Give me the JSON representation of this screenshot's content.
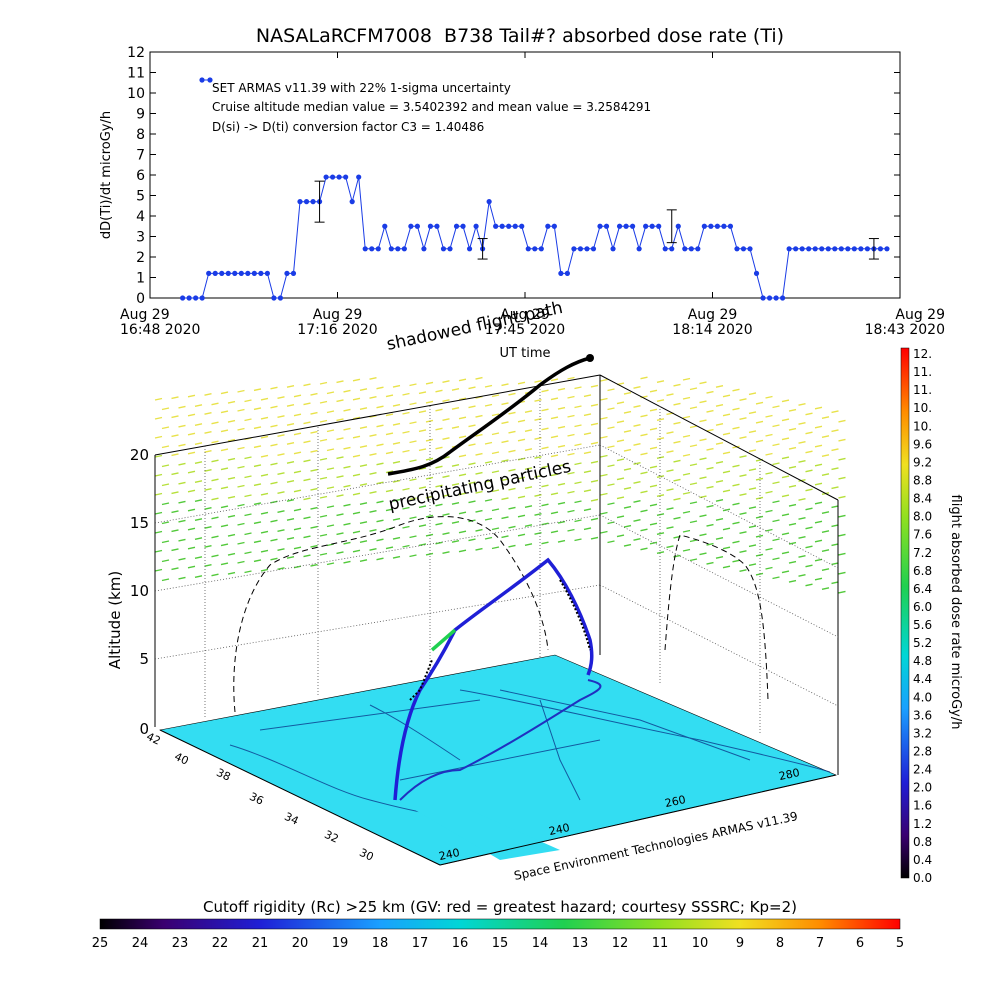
{
  "chart_data": [
    {
      "type": "line",
      "title": "NASALaRCFM7008  B738 Tail#? absorbed dose rate (Ti)",
      "ylabel": "dD(Ti)/dt microGy/h",
      "xlabel": "UT time",
      "ylim": [
        0,
        12
      ],
      "yticks": [
        "0",
        "1",
        "2",
        "3",
        "4",
        "5",
        "6",
        "7",
        "8",
        "9",
        "10",
        "11",
        "12"
      ],
      "xtick_labels": [
        {
          "top": "Aug 29",
          "bottom": "16:48 2020"
        },
        {
          "top": "Aug 29",
          "bottom": "17:16 2020"
        },
        {
          "top": "Aug 29",
          "bottom": "17:45 2020"
        },
        {
          "top": "Aug 29",
          "bottom": "18:14 2020"
        },
        {
          "top": "Aug 29",
          "bottom": "18:43 2020"
        }
      ],
      "xlim_minutes": [
        0,
        115
      ],
      "annotations": [
        "SET ARMAS v11.39 with 22% 1-sigma uncertainty",
        "Cruise altitude median value = 3.5402392 and mean value = 3.2584291",
        "D(si) -> D(ti) conversion factor C3 = 1.40486"
      ],
      "series": [
        {
          "x": [
            5,
            6,
            7,
            8,
            9,
            10,
            11,
            12,
            13,
            14,
            15,
            16,
            17,
            18,
            19,
            20,
            21,
            22,
            23,
            24,
            25,
            26,
            27,
            28,
            29,
            30,
            31,
            32,
            33,
            34,
            35,
            36,
            37,
            38,
            39,
            40,
            41,
            42,
            43,
            44,
            45,
            46,
            47,
            48,
            49,
            50,
            51,
            52,
            53,
            54,
            55,
            56,
            57,
            58,
            59,
            60,
            61,
            62,
            63,
            64,
            65,
            66,
            67,
            68,
            69,
            70,
            71,
            72,
            73,
            74,
            75,
            76,
            77,
            78,
            79,
            80,
            81,
            82,
            83,
            84,
            85,
            86,
            87,
            88,
            89,
            90,
            91,
            92,
            93,
            94,
            95,
            96,
            97,
            98,
            99,
            100,
            101,
            102,
            103,
            104,
            105,
            106,
            107,
            108,
            109,
            110,
            111,
            112,
            113
          ],
          "y": [
            0,
            0,
            0,
            0,
            1.2,
            1.2,
            1.2,
            1.2,
            1.2,
            1.2,
            1.2,
            1.2,
            1.2,
            1.2,
            0,
            0,
            1.2,
            1.2,
            4.7,
            4.7,
            4.7,
            4.7,
            5.9,
            5.9,
            5.9,
            5.9,
            4.7,
            5.9,
            2.4,
            2.4,
            2.4,
            3.5,
            2.4,
            2.4,
            2.4,
            3.5,
            3.5,
            2.4,
            3.5,
            3.5,
            2.4,
            2.4,
            3.5,
            3.5,
            2.4,
            3.5,
            2.4,
            4.7,
            3.5,
            3.5,
            3.5,
            3.5,
            3.5,
            2.4,
            2.4,
            2.4,
            3.5,
            3.5,
            1.2,
            1.2,
            2.4,
            2.4,
            2.4,
            2.4,
            3.5,
            3.5,
            2.4,
            3.5,
            3.5,
            3.5,
            2.4,
            3.5,
            3.5,
            3.5,
            2.4,
            2.4,
            3.5,
            2.4,
            2.4,
            2.4,
            3.5,
            3.5,
            3.5,
            3.5,
            3.5,
            2.4,
            2.4,
            2.4,
            1.2,
            0,
            0,
            0,
            0,
            2.4,
            2.4,
            2.4,
            2.4,
            2.4,
            2.4,
            2.4,
            2.4,
            2.4,
            2.4,
            2.4,
            2.4,
            2.4,
            2.4,
            2.4,
            2.4
          ]
        }
      ],
      "error_bars": [
        {
          "x": 26,
          "y": 4.7,
          "low": 3.7,
          "high": 5.7
        },
        {
          "x": 51,
          "y": 2.4,
          "low": 1.9,
          "high": 2.9
        },
        {
          "x": 80,
          "y": 3.5,
          "low": 2.7,
          "high": 4.3
        },
        {
          "x": 111,
          "y": 2.4,
          "low": 1.9,
          "high": 2.9
        }
      ]
    },
    {
      "type": "scatter3d",
      "zlabel": "Altitude (km)",
      "zticks": [
        "0",
        "5",
        "10",
        "15",
        "20"
      ],
      "lat_ticks": [
        "42",
        "40",
        "38",
        "36",
        "34",
        "32",
        "30"
      ],
      "lon_ticks": [
        "240",
        "240",
        "260",
        "280"
      ],
      "annotations": [
        "shadowed flight path",
        "precipitating particles"
      ],
      "credit": "Space Environment Technologies ARMAS v11.39",
      "colorbar_label": "flight absorbed dose rate microGy/h",
      "colorbar_ticks": [
        "12.",
        "11.",
        "11.",
        "10.",
        "10.",
        "9.6",
        "9.2",
        "8.8",
        "8.4",
        "8.0",
        "7.6",
        "7.2",
        "6.8",
        "6.4",
        "6.0",
        "5.6",
        "5.2",
        "4.8",
        "4.4",
        "4.0",
        "3.6",
        "3.2",
        "2.8",
        "2.4",
        "2.0",
        "1.6",
        "1.2",
        "0.8",
        "0.4",
        "0.0"
      ]
    },
    {
      "type": "colorbar",
      "title": "Cutoff rigidity (Rc) >25 km (GV: red = greatest hazard; courtesy SSSRC; Kp=2)",
      "ticks": [
        "25",
        "24",
        "23",
        "22",
        "21",
        "20",
        "19",
        "18",
        "17",
        "16",
        "15",
        "14",
        "13",
        "12",
        "11",
        "10",
        "9",
        "8",
        "7",
        "6",
        "5"
      ]
    }
  ],
  "colors": {
    "series": "#1a3ce6",
    "ground": "#33ddf2",
    "particles_high": "#e8e24a",
    "particles_low": "#52c93a"
  }
}
